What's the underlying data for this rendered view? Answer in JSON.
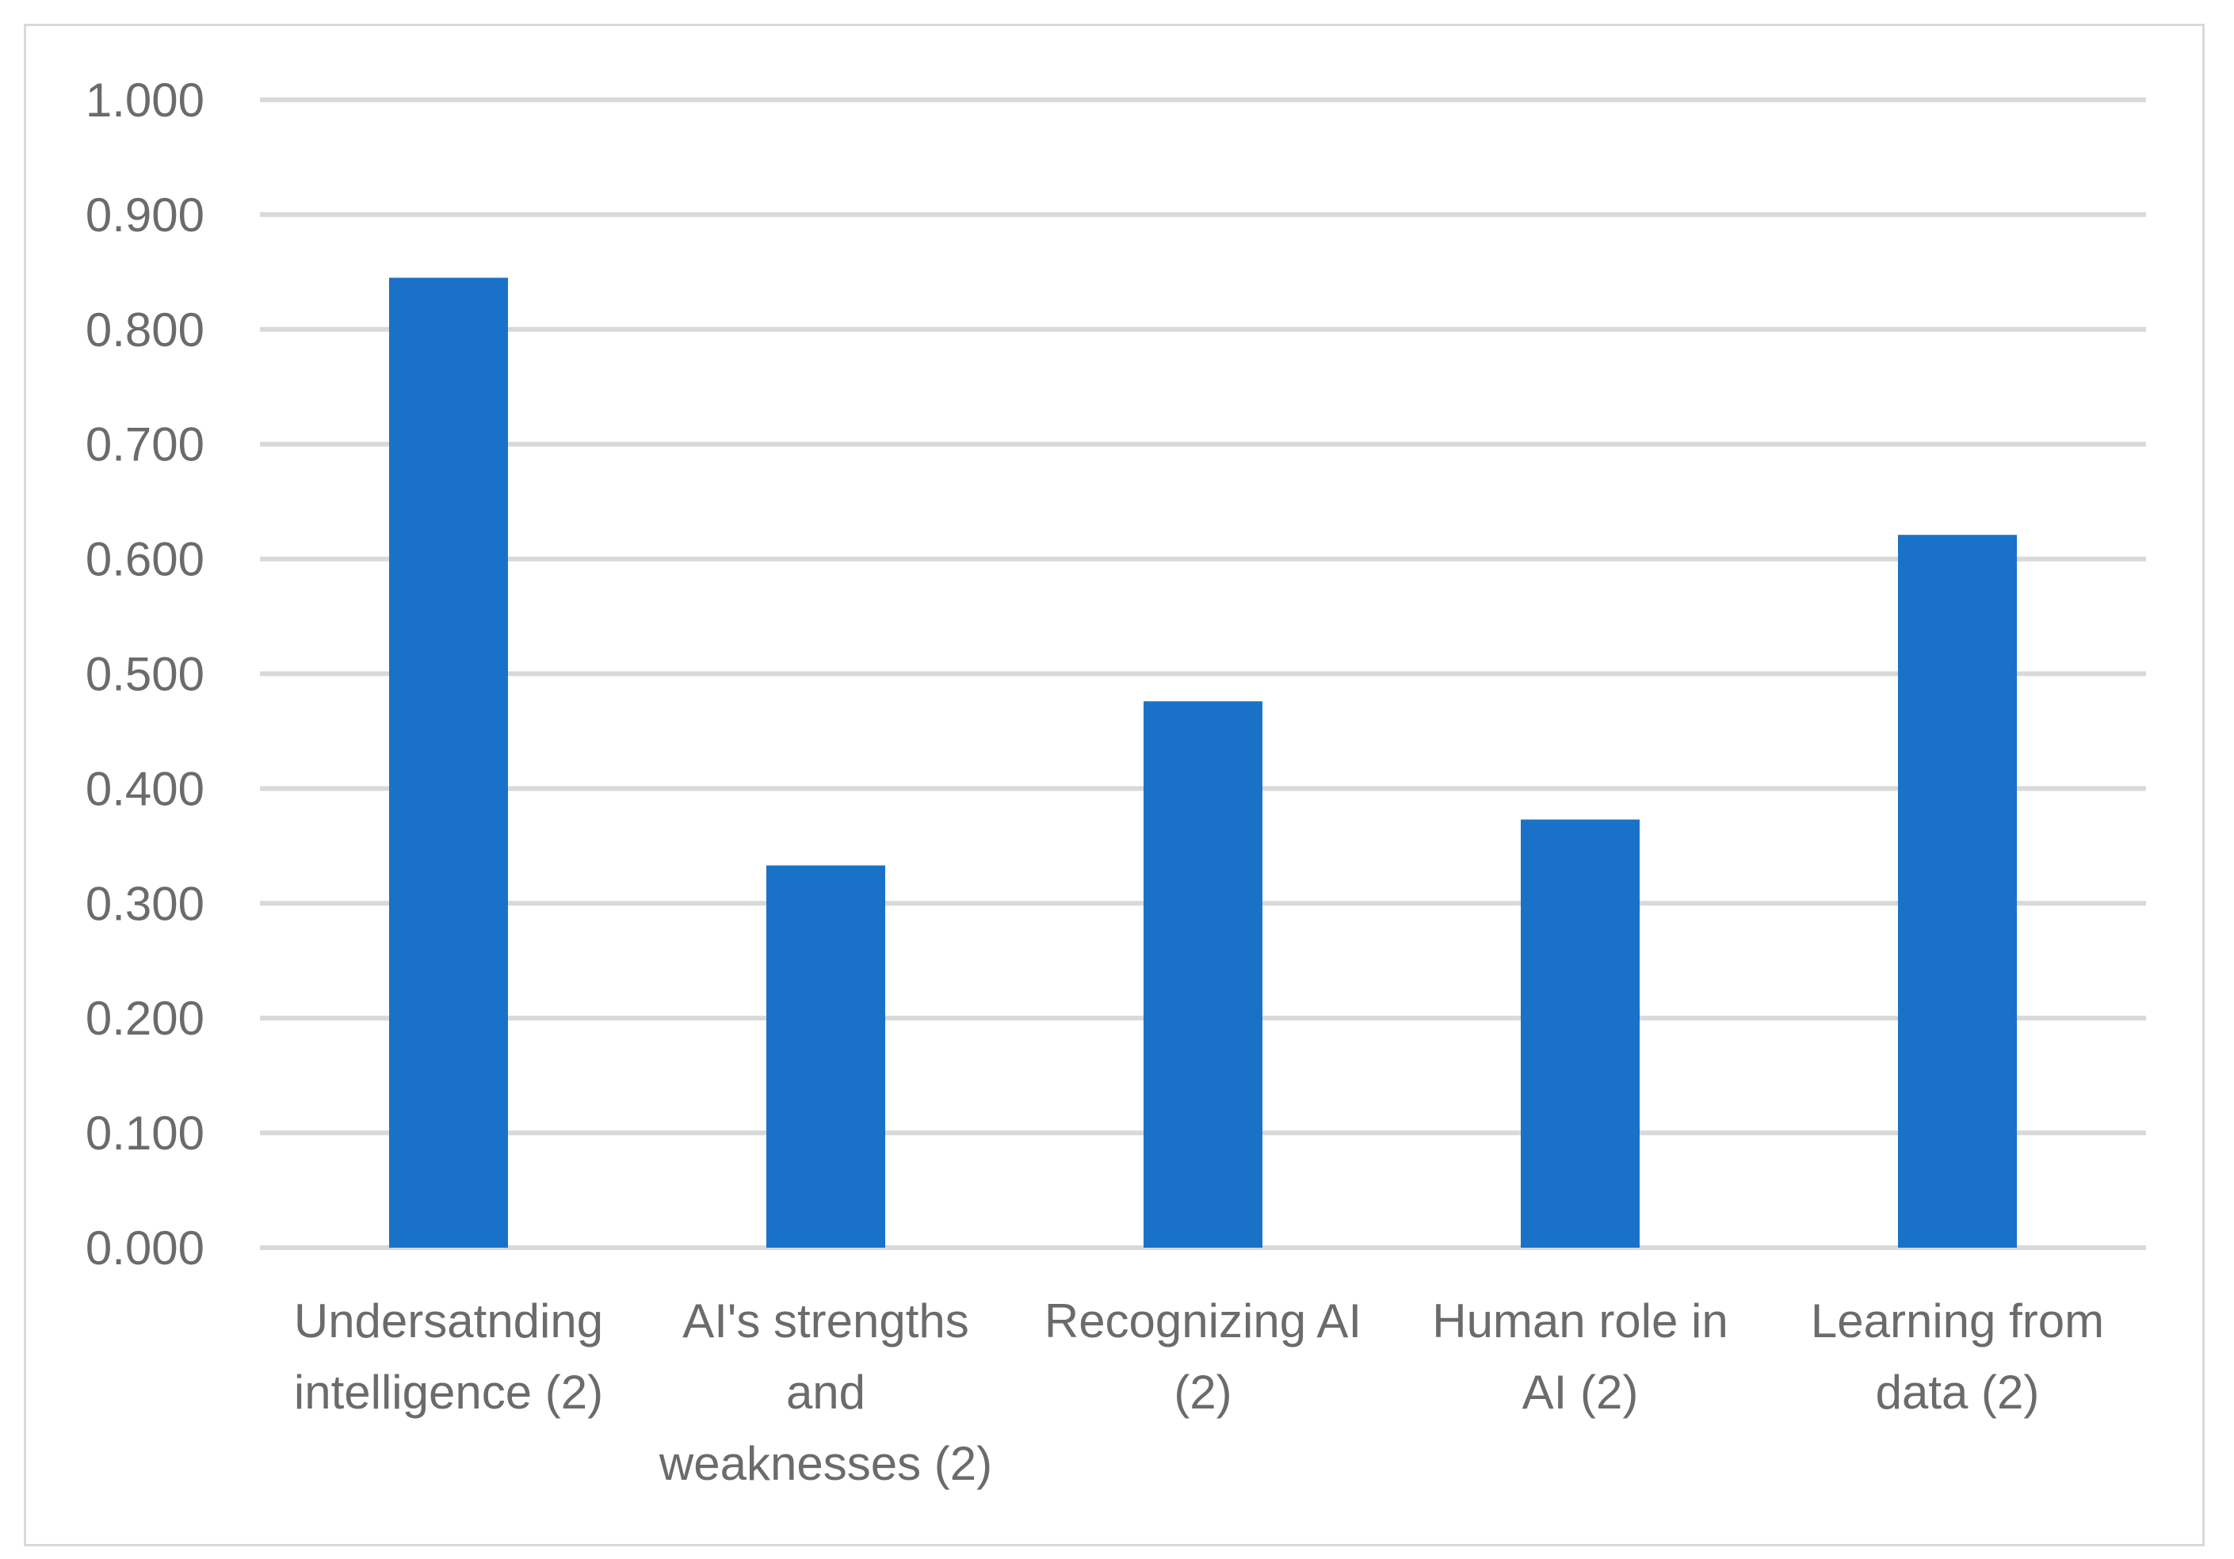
{
  "chart_data": {
    "type": "bar",
    "title": "",
    "xlabel": "",
    "ylabel": "",
    "categories": [
      [
        "Undersatnding",
        "intelligence (2)"
      ],
      [
        "AI's strengths",
        "and",
        "weaknesses (2)"
      ],
      [
        "Recognizing AI",
        "(2)"
      ],
      [
        "Human role in",
        "AI (2)"
      ],
      [
        "Learning from",
        "data (2)"
      ]
    ],
    "values": [
      0.845,
      0.333,
      0.476,
      0.373,
      0.621
    ],
    "ylim": [
      0,
      1.0
    ],
    "yticks": [
      "0.000",
      "0.100",
      "0.200",
      "0.300",
      "0.400",
      "0.500",
      "0.600",
      "0.700",
      "0.800",
      "0.900",
      "1.000"
    ],
    "grid": true,
    "legend": "none",
    "colors": {
      "bar": "#1a72c8",
      "grid": "#d9d9d9",
      "text": "#6b6b6b",
      "border": "#d9d9d9"
    }
  }
}
